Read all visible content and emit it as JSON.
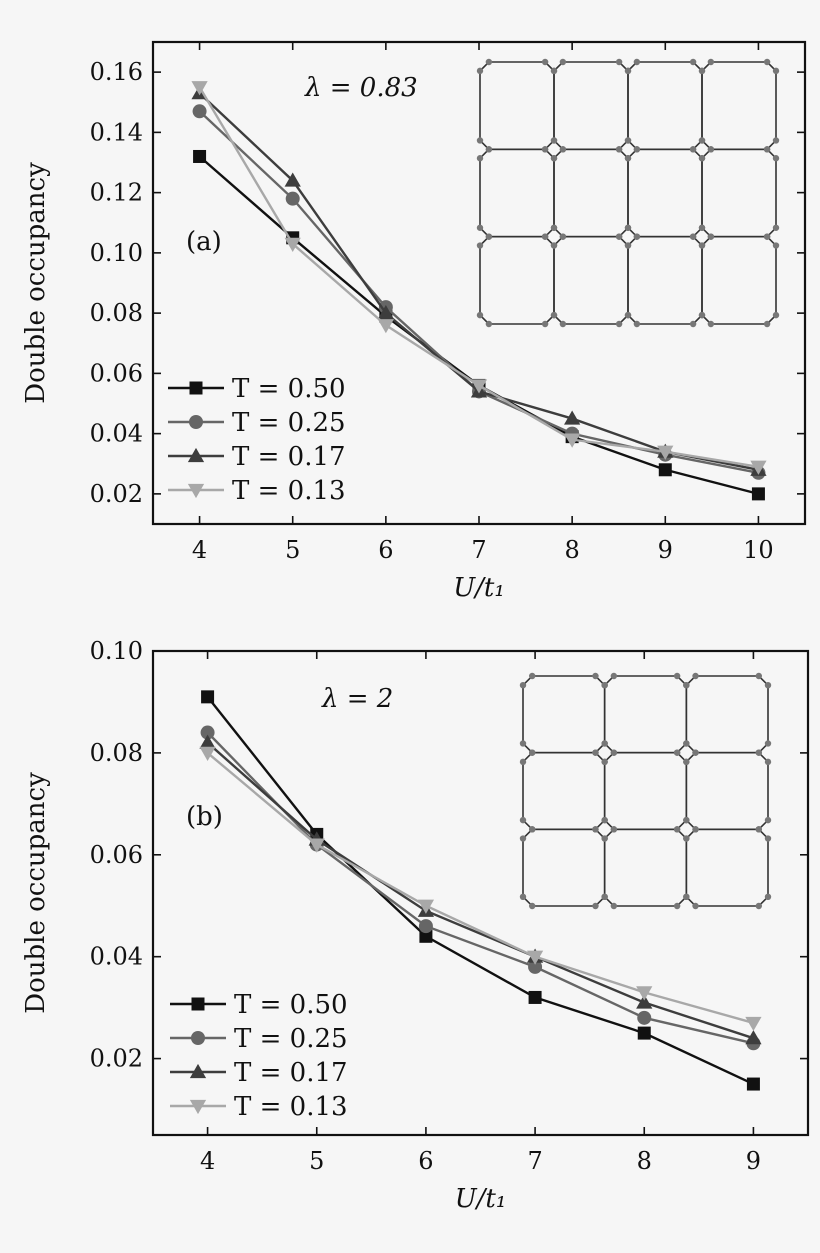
{
  "colors": {
    "background": "#f6f6f6",
    "series": [
      "#111111",
      "#666666",
      "#3d3d3d",
      "#a8a8a8"
    ],
    "lattice_edge": "#333333",
    "lattice_node": "#777777"
  },
  "chart_data": [
    {
      "type": "line",
      "panel": "(a)",
      "annotation": "λ = 0.83",
      "xlabel": "U/t₁",
      "ylabel": "Double occupancy",
      "xlim": [
        3.5,
        10.5
      ],
      "ylim": [
        0.01,
        0.17
      ],
      "xticks": [
        4,
        5,
        6,
        7,
        8,
        9,
        10
      ],
      "yticks": [
        0.02,
        0.04,
        0.06,
        0.08,
        0.1,
        0.12,
        0.14,
        0.16
      ],
      "ytick_labels": [
        "0.02",
        "0.04",
        "0.06",
        "0.08",
        "0.10",
        "0.12",
        "0.14",
        "0.16"
      ],
      "legend_position": "lower-left",
      "series": [
        {
          "name": "T = 0.50",
          "marker": "square",
          "x": [
            4,
            5,
            6,
            7,
            8,
            9,
            10
          ],
          "values": [
            0.132,
            0.105,
            0.079,
            0.056,
            0.039,
            0.028,
            0.02
          ]
        },
        {
          "name": "T = 0.25",
          "marker": "circle",
          "x": [
            4,
            5,
            6,
            7,
            8,
            9,
            10
          ],
          "values": [
            0.147,
            0.118,
            0.082,
            0.054,
            0.04,
            0.033,
            0.027
          ]
        },
        {
          "name": "T = 0.17",
          "marker": "triangle-up",
          "x": [
            4,
            5,
            6,
            7,
            8,
            9,
            10
          ],
          "values": [
            0.153,
            0.124,
            0.08,
            0.054,
            0.045,
            0.034,
            0.028
          ]
        },
        {
          "name": "T = 0.13",
          "marker": "triangle-down",
          "x": [
            4,
            5,
            6,
            7,
            8,
            9,
            10
          ],
          "values": [
            0.155,
            0.103,
            0.076,
            0.056,
            0.038,
            0.034,
            0.029
          ]
        }
      ]
    },
    {
      "type": "line",
      "panel": "(b)",
      "annotation": "λ = 2",
      "xlabel": "U/t₁",
      "ylabel": "Double occupancy",
      "xlim": [
        3.5,
        9.5
      ],
      "ylim": [
        0.005,
        0.1
      ],
      "xticks": [
        4,
        5,
        6,
        7,
        8,
        9
      ],
      "yticks": [
        0.02,
        0.04,
        0.06,
        0.08,
        0.1
      ],
      "ytick_labels": [
        "0.02",
        "0.04",
        "0.06",
        "0.08",
        "0.10"
      ],
      "legend_position": "lower-left",
      "series": [
        {
          "name": "T = 0.50",
          "marker": "square",
          "x": [
            4,
            5,
            6,
            7,
            8,
            9
          ],
          "values": [
            0.091,
            0.064,
            0.044,
            0.032,
            0.025,
            0.015
          ]
        },
        {
          "name": "T = 0.25",
          "marker": "circle",
          "x": [
            4,
            5,
            6,
            7,
            8,
            9
          ],
          "values": [
            0.084,
            0.062,
            0.046,
            0.038,
            0.028,
            0.023
          ]
        },
        {
          "name": "T = 0.17",
          "marker": "triangle-up",
          "x": [
            4,
            5,
            6,
            7,
            8,
            9
          ],
          "values": [
            0.082,
            0.063,
            0.049,
            0.04,
            0.031,
            0.024
          ]
        },
        {
          "name": "T = 0.13",
          "marker": "triangle-down",
          "x": [
            4,
            5,
            6,
            7,
            8,
            9
          ],
          "values": [
            0.08,
            0.062,
            0.05,
            0.04,
            0.033,
            0.027
          ]
        }
      ]
    }
  ]
}
